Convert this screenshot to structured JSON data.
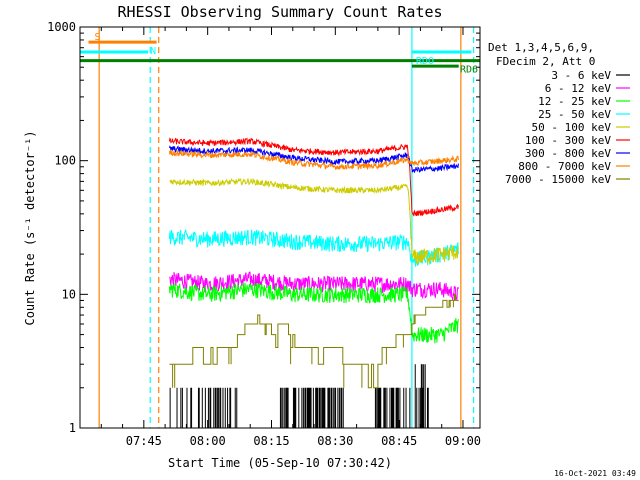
{
  "chart_data": {
    "type": "line",
    "title": "RHESSI Observing Summary Count Rates",
    "xlabel": "Start Time (05-Sep-10 07:30:42)",
    "ylabel": "Count Rate (s⁻¹ detector⁻¹)",
    "yscale": "log",
    "ylim": [
      1,
      1000
    ],
    "xlim_minutes": [
      0,
      94
    ],
    "x_ticks": [
      {
        "m": 15,
        "label": "07:45"
      },
      {
        "m": 30,
        "label": "08:00"
      },
      {
        "m": 45,
        "label": "08:15"
      },
      {
        "m": 60,
        "label": "08:30"
      },
      {
        "m": 75,
        "label": "08:45"
      },
      {
        "m": 90,
        "label": "09:00"
      }
    ],
    "y_ticks": [
      {
        "v": 1,
        "label": "1"
      },
      {
        "v": 10,
        "label": "10"
      },
      {
        "v": 100,
        "label": "100"
      },
      {
        "v": 1000,
        "label": "1000"
      }
    ],
    "legend_header": [
      "Det 1,3,4,5,6,9,",
      "FDecim 2, Att 0"
    ],
    "legend_position": "right",
    "series": [
      {
        "name": "3 - 6 keV",
        "color": "#000000",
        "x": [
          21,
          33,
          36,
          48,
          70,
          78,
          80,
          82
        ],
        "values": [
          1,
          2,
          2,
          2,
          2,
          2,
          3,
          2
        ],
        "style": "noisy"
      },
      {
        "name": "6 - 12 keV",
        "color": "#ff00ff",
        "x": [
          21,
          30,
          40,
          50,
          60,
          70,
          77,
          78,
          85,
          89
        ],
        "values": [
          13,
          12,
          13,
          12,
          12,
          12,
          12,
          11,
          11,
          10
        ],
        "style": "noisy"
      },
      {
        "name": "12 - 25 keV",
        "color": "#00ff00",
        "x": [
          21,
          30,
          40,
          50,
          60,
          70,
          77,
          78,
          85,
          89
        ],
        "values": [
          11,
          10,
          11,
          10,
          10,
          10,
          10,
          5,
          5,
          6
        ],
        "style": "noisy"
      },
      {
        "name": "25 - 50 keV",
        "color": "#00ffff",
        "x": [
          21,
          30,
          40,
          50,
          60,
          70,
          77,
          78,
          85,
          89
        ],
        "values": [
          27,
          26,
          27,
          25,
          24,
          24,
          25,
          18,
          20,
          22
        ],
        "style": "noisy"
      },
      {
        "name": "50 - 100 keV",
        "color": "#cccc00",
        "x": [
          21,
          30,
          40,
          50,
          60,
          70,
          77,
          78,
          85,
          89
        ],
        "values": [
          70,
          68,
          70,
          63,
          60,
          60,
          64,
          19,
          20,
          21
        ],
        "style": "noisy"
      },
      {
        "name": "100 - 300 keV",
        "color": "#ff0000",
        "x": [
          21,
          30,
          40,
          50,
          60,
          70,
          77,
          78,
          85,
          89
        ],
        "values": [
          140,
          135,
          140,
          120,
          115,
          118,
          128,
          40,
          43,
          45
        ],
        "style": "noisy"
      },
      {
        "name": "300 - 800 keV",
        "color": "#0000ff",
        "x": [
          21,
          30,
          40,
          50,
          60,
          70,
          77,
          78,
          85,
          89
        ],
        "values": [
          123,
          118,
          120,
          105,
          98,
          100,
          110,
          85,
          88,
          92
        ],
        "style": "noisy"
      },
      {
        "name": "800 - 7000 keV",
        "color": "#ff8000",
        "x": [
          21,
          30,
          40,
          50,
          60,
          70,
          77,
          78,
          85,
          89
        ],
        "values": [
          115,
          110,
          112,
          97,
          90,
          92,
          102,
          95,
          100,
          103
        ],
        "style": "noisy"
      },
      {
        "name": "7000 - 15000 keV",
        "color": "#808000",
        "x": [
          21,
          24,
          27,
          30,
          34,
          37,
          40,
          43,
          46,
          50,
          54,
          58,
          62,
          66,
          70,
          74,
          77,
          78,
          81,
          84,
          87,
          89
        ],
        "values": [
          3,
          4,
          4,
          3,
          4,
          5,
          6,
          6,
          5,
          4,
          4,
          3,
          3,
          3,
          3,
          4,
          5,
          6,
          8,
          8,
          9,
          10
        ],
        "style": "step"
      }
    ],
    "flags": [
      {
        "label": "S",
        "color": "#ff8000",
        "y": 770,
        "x0": 2,
        "x1": 18
      },
      {
        "label": "N",
        "color": "#00ffff",
        "y": 650,
        "x0": 0,
        "x1": 16
      },
      {
        "label": "RD6",
        "color": "#008000",
        "y": 560,
        "x0": 0,
        "x1": 94
      },
      {
        "label": "RDO",
        "color": "#00ffff",
        "y": 650,
        "x0": 78,
        "x1": 92
      },
      {
        "label": "",
        "color": "#008000",
        "y": 510,
        "x0": 78,
        "x1": 89
      }
    ],
    "vlines": [
      {
        "x": 4.5,
        "color": "#ff8000",
        "dash": false
      },
      {
        "x": 16.5,
        "color": "#00ffff",
        "dash": true
      },
      {
        "x": 18.5,
        "color": "#ff8000",
        "dash": true
      },
      {
        "x": 78,
        "color": "#00ffff",
        "dash": false
      },
      {
        "x": 89.5,
        "color": "#ff8000",
        "dash": false
      },
      {
        "x": 92.5,
        "color": "#00ffff",
        "dash": true
      }
    ]
  },
  "footer": {
    "date": "16-Oct-2021 03:49"
  }
}
